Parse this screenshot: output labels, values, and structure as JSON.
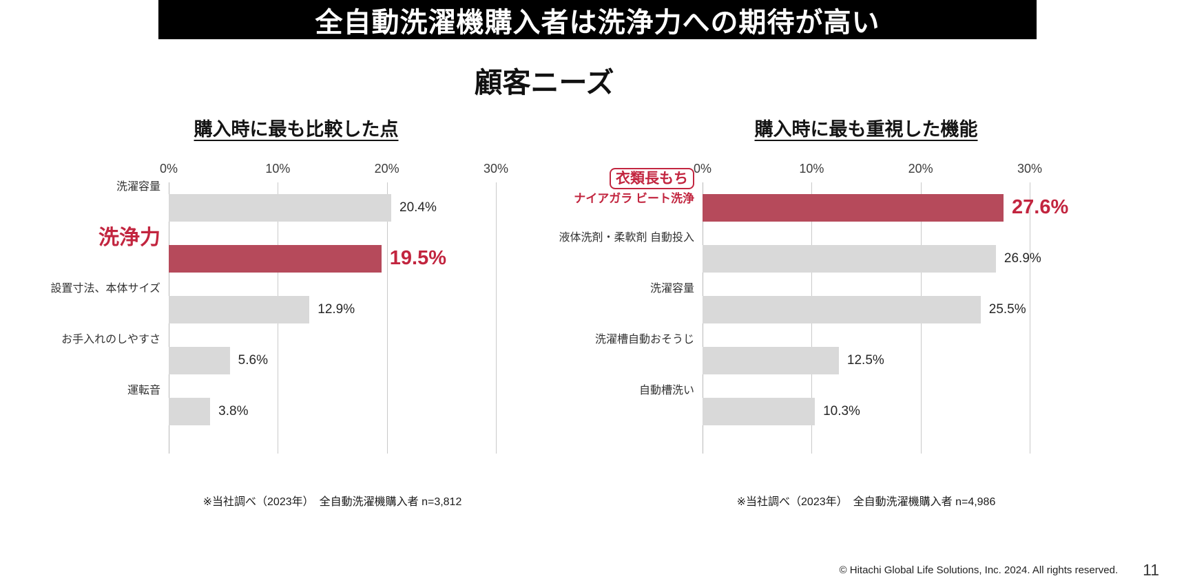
{
  "banner": {
    "title": "全自動洗濯機購入者は洗浄力への期待が高い"
  },
  "page_title": "顧客ニーズ",
  "colors": {
    "banner_bg": "#000000",
    "banner_text": "#ffffff",
    "bar_default": "#d9d9d9",
    "bar_highlight": "#b64a5b",
    "highlight_text": "#c2253f",
    "gridline": "#c9c9c9"
  },
  "chart_data": [
    {
      "type": "bar",
      "orientation": "horizontal",
      "title": "購入時に最も比較した点",
      "categories": [
        "洗濯容量",
        "洗浄力",
        "設置寸法、本体サイズ",
        "お手入れのしやすさ",
        "運転音"
      ],
      "values": [
        20.4,
        19.5,
        12.9,
        5.6,
        3.8
      ],
      "value_labels": [
        "20.4%",
        "19.5%",
        "12.9%",
        "5.6%",
        "3.8%"
      ],
      "highlight_index": 1,
      "xlim": [
        0,
        30
      ],
      "x_ticks": [
        "0%",
        "10%",
        "20%",
        "30%"
      ],
      "grid": true,
      "legend": "none",
      "footnote": "※当社調べ（2023年）　全自動洗濯機購入者  n=3,812"
    },
    {
      "type": "bar",
      "orientation": "horizontal",
      "title": "購入時に最も重視した機能",
      "categories": [
        {
          "badge": "衣類長もち",
          "line": "ナイアガラ ビート洗浄"
        },
        "液体洗剤・柔軟剤 自動投入",
        "洗濯容量",
        "洗濯槽自動おそうじ",
        "自動槽洗い"
      ],
      "values": [
        27.6,
        26.9,
        25.5,
        12.5,
        10.3
      ],
      "value_labels": [
        "27.6%",
        "26.9%",
        "25.5%",
        "12.5%",
        "10.3%"
      ],
      "highlight_index": 0,
      "xlim": [
        0,
        30
      ],
      "x_ticks": [
        "0%",
        "10%",
        "20%",
        "30%"
      ],
      "grid": true,
      "legend": "none",
      "footnote": "※当社調べ（2023年）　全自動洗濯機購入者  n=4,986"
    }
  ],
  "footer": {
    "copyright": "© Hitachi Global Life Solutions, Inc. 2024. All rights reserved.",
    "page_number": "11"
  }
}
